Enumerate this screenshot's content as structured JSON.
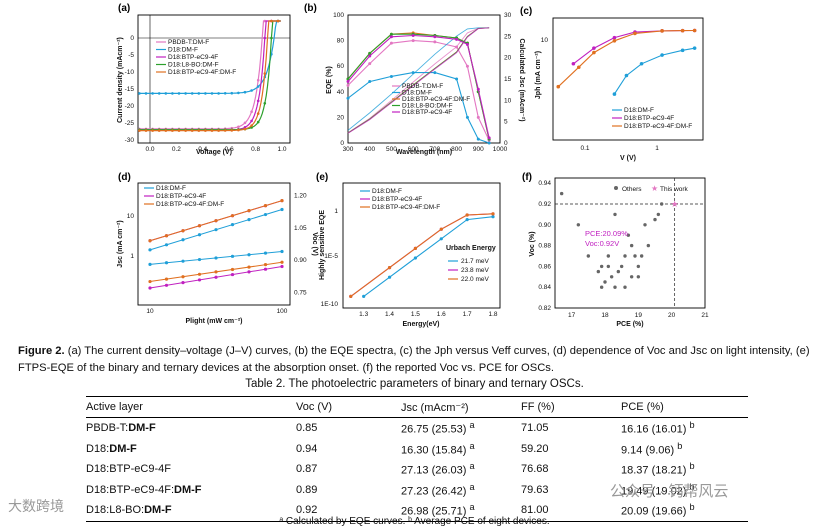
{
  "panels": {
    "a": {
      "label": "(a)",
      "ylabel": "Current density (mAcm⁻²)",
      "xlabel": "Voltage (V)",
      "xticks": [
        "0.0",
        "0.2",
        "0.4",
        "0.6",
        "0.8",
        "1.0"
      ],
      "yticks": [
        "0",
        "-5",
        "-10",
        "-15",
        "-20",
        "-25",
        "-30"
      ],
      "legend": [
        "PBDB-T:DM-F",
        "D18:DM-F",
        "D18:BTP-eC9-4F",
        "D18:L8-BO:DM-F",
        "D18:BTP-eC9-4F:DM-F"
      ],
      "colors": [
        "#e377c2",
        "#1f9fd8",
        "#c020c0",
        "#2ca02c",
        "#e07020"
      ]
    },
    "b": {
      "label": "(b)",
      "ylabel": "EQE (%)",
      "y2label": "Calculated Jsc (mAcm⁻²)",
      "xlabel": "Wavelength (nm)",
      "xticks": [
        "300",
        "400",
        "500",
        "600",
        "700",
        "800",
        "900",
        "1000"
      ],
      "yticks": [
        "0",
        "20",
        "40",
        "60",
        "80",
        "100"
      ],
      "y2ticks": [
        "0",
        "5",
        "10",
        "15",
        "20",
        "25",
        "30"
      ],
      "legend": [
        "PBDB-T:DM-F",
        "D18:DM-F",
        "D18:BTP-eC9-4F:DM-F",
        "D18:L8-BO:DM-F",
        "D18:BTP-eC9-4F"
      ]
    },
    "c": {
      "label": "(c)",
      "ylabel": "Jph (mA cm⁻²)",
      "xlabel": "V (V)",
      "xticks": [
        "0.1",
        "1"
      ],
      "yticks": [
        "10"
      ],
      "legend": [
        "D18:DM-F",
        "D18:BTP-eC9-4F",
        "D18:BTP-eC9-4F:DM-F"
      ]
    },
    "d": {
      "label": "(d)",
      "ylabel": "Jsc (mA cm⁻²)",
      "y2label": "Voc (V)",
      "xlabel": "Plight (mW cm⁻²)",
      "xticks": [
        "10",
        "100"
      ],
      "yticks": [
        "1",
        "10"
      ],
      "y2ticks": [
        "0.75",
        "0.90",
        "1.05",
        "1.20"
      ],
      "y2ticks_extra": [
        "1.20",
        "1.05",
        "0.90",
        "0.75"
      ],
      "legend": [
        "D18:DM-F",
        "D18:BTP-eC9-4F",
        "D18:BTP-eC9-4F:DM-F"
      ]
    },
    "e": {
      "label": "(e)",
      "ylabel": "Highly sensitive EQE",
      "xlabel": "Energy(eV)",
      "xticks": [
        "1.3",
        "1.4",
        "1.5",
        "1.6",
        "1.7",
        "1.8"
      ],
      "yticks": [
        "1",
        "1E-5",
        "1E-10"
      ],
      "legend": [
        "D18:DM-F",
        "D18:BTP-eC9-4F",
        "D18:BTP-eC9-4F:DM-F"
      ],
      "urbach_title": "Urbach Energy",
      "urbach": [
        "21.7 meV",
        "23.8 meV",
        "22.0 meV"
      ]
    },
    "f": {
      "label": "(f)",
      "ylabel": "Voc (%)",
      "xlabel": "PCE (%)",
      "xticks": [
        "17",
        "18",
        "19",
        "20",
        "21"
      ],
      "yticks": [
        "0.82",
        "0.84",
        "0.86",
        "0.88",
        "0.90",
        "0.92",
        "0.94"
      ],
      "legend": [
        "Others",
        "This work"
      ],
      "annotation1": "PCE:20.09%",
      "annotation2": "Voc:0.92V"
    }
  },
  "chart_data": [
    {
      "type": "line",
      "title": "(a) J–V curves",
      "xlabel": "Voltage (V)",
      "ylabel": "Current density (mAcm⁻²)",
      "xlim": [
        -0.1,
        1.0
      ],
      "ylim": [
        -30,
        5
      ],
      "series": [
        {
          "name": "PBDB-T:DM-F",
          "voc": 0.85,
          "jsc": -26.75,
          "ff": 0.7105
        },
        {
          "name": "D18:DM-F",
          "voc": 0.94,
          "jsc": -16.3,
          "ff": 0.592
        },
        {
          "name": "D18:BTP-eC9-4F",
          "voc": 0.87,
          "jsc": -27.13,
          "ff": 0.7668
        },
        {
          "name": "D18:L8-BO:DM-F",
          "voc": 0.92,
          "jsc": -26.98,
          "ff": 0.81
        },
        {
          "name": "D18:BTP-eC9-4F:DM-F",
          "voc": 0.89,
          "jsc": -27.23,
          "ff": 0.7963
        }
      ]
    },
    {
      "type": "line",
      "title": "(b) EQE spectra",
      "xlabel": "Wavelength (nm)",
      "ylabel": "EQE (%)",
      "xlim": [
        300,
        1000
      ],
      "ylim": [
        0,
        100
      ],
      "series": [
        {
          "name": "PBDB-T:DM-F",
          "x": [
            300,
            400,
            500,
            600,
            700,
            800,
            850,
            900,
            950
          ],
          "y": [
            45,
            62,
            78,
            80,
            79,
            75,
            60,
            20,
            2
          ]
        },
        {
          "name": "D18:DM-F",
          "x": [
            300,
            400,
            500,
            600,
            700,
            800,
            850,
            900,
            950
          ],
          "y": [
            35,
            48,
            52,
            55,
            55,
            50,
            20,
            3,
            0
          ]
        },
        {
          "name": "D18:BTP-eC9-4F:DM-F",
          "x": [
            300,
            400,
            500,
            600,
            700,
            800,
            850,
            900,
            950
          ],
          "y": [
            50,
            70,
            85,
            86,
            84,
            82,
            78,
            40,
            3
          ]
        },
        {
          "name": "D18:L8-BO:DM-F",
          "x": [
            300,
            400,
            500,
            600,
            700,
            800,
            850,
            900,
            950
          ],
          "y": [
            50,
            70,
            85,
            85,
            84,
            82,
            78,
            40,
            3
          ]
        },
        {
          "name": "D18:BTP-eC9-4F",
          "x": [
            300,
            400,
            500,
            600,
            700,
            800,
            850,
            900,
            950
          ],
          "y": [
            48,
            68,
            83,
            84,
            83,
            81,
            77,
            42,
            4
          ]
        }
      ]
    },
    {
      "type": "line",
      "title": "(c) Jph vs Veff",
      "xlabel": "V (V)",
      "ylabel": "Jph (mA cm⁻²)",
      "series": [
        {
          "name": "D18:DM-F",
          "x": [
            0.2,
            0.3,
            0.5,
            1,
            2,
            3
          ],
          "y": [
            4,
            7,
            10,
            13,
            15,
            16
          ]
        },
        {
          "name": "D18:BTP-eC9-4F",
          "x": [
            0.05,
            0.1,
            0.2,
            0.4,
            1,
            2,
            3
          ],
          "y": [
            10,
            16,
            22,
            26,
            27,
            27.2,
            27.3
          ]
        },
        {
          "name": "D18:BTP-eC9-4F:DM-F",
          "x": [
            0.03,
            0.06,
            0.1,
            0.2,
            0.4,
            1,
            2,
            3
          ],
          "y": [
            5,
            9,
            14,
            20,
            25,
            27,
            27.2,
            27.3
          ]
        }
      ]
    },
    {
      "type": "scatter",
      "title": "(d) Voc and Jsc vs light intensity",
      "xlabel": "Plight (mW cm⁻²)",
      "ylabel": "Jsc (mA cm⁻²)",
      "series": [
        {
          "name": "D18:DM-F Jsc",
          "x": [
            10,
            100
          ],
          "y": [
            1.6,
            16.3
          ]
        },
        {
          "name": "D18:BTP-eC9-4F Jsc",
          "x": [
            10,
            100
          ],
          "y": [
            2.7,
            27.1
          ]
        },
        {
          "name": "D18:BTP-eC9-4F:DM-F Jsc",
          "x": [
            10,
            100
          ],
          "y": [
            2.7,
            27.2
          ]
        },
        {
          "name": "D18:DM-F Voc",
          "x": [
            10,
            100
          ],
          "y": [
            0.88,
            0.94
          ]
        },
        {
          "name": "D18:BTP-eC9-4F Voc",
          "x": [
            10,
            100
          ],
          "y": [
            0.77,
            0.87
          ]
        },
        {
          "name": "D18:BTP-eC9-4F:DM-F Voc",
          "x": [
            10,
            100
          ],
          "y": [
            0.8,
            0.89
          ]
        }
      ]
    },
    {
      "type": "line",
      "title": "(e) FTPS-EQE",
      "xlabel": "Energy(eV)",
      "ylabel": "Highly sensitive EQE",
      "series": [
        {
          "name": "D18:DM-F",
          "x": [
            1.3,
            1.4,
            1.5,
            1.6,
            1.7,
            1.8
          ],
          "y": [
            1e-09,
            1e-07,
            1e-05,
            0.001,
            0.1,
            0.2
          ]
        },
        {
          "name": "D18:BTP-eC9-4F",
          "x": [
            1.25,
            1.4,
            1.5,
            1.6,
            1.7,
            1.8
          ],
          "y": [
            1e-09,
            1e-06,
            0.0001,
            0.01,
            0.3,
            0.4
          ]
        },
        {
          "name": "D18:BTP-eC9-4F:DM-F",
          "x": [
            1.25,
            1.4,
            1.5,
            1.6,
            1.7,
            1.8
          ],
          "y": [
            1e-09,
            1e-06,
            0.0001,
            0.01,
            0.3,
            0.4
          ]
        }
      ]
    },
    {
      "type": "scatter",
      "title": "(f) Voc vs PCE for OSCs",
      "xlabel": "PCE (%)",
      "ylabel": "Voc (%)",
      "xlim": [
        16.5,
        21
      ],
      "ylim": [
        0.82,
        0.94
      ],
      "series": [
        {
          "name": "Others",
          "x": [
            16.7,
            17.2,
            17.5,
            17.8,
            17.9,
            18.0,
            18.1,
            18.2,
            18.3,
            18.4,
            18.5,
            18.6,
            18.7,
            18.8,
            18.9,
            19.0,
            19.1,
            19.2,
            19.3,
            19.5,
            19.6,
            19.7,
            18.3,
            18.1,
            17.9,
            18.6,
            18.8,
            19.0
          ],
          "y": [
            0.93,
            0.9,
            0.87,
            0.855,
            0.84,
            0.845,
            0.86,
            0.85,
            0.84,
            0.855,
            0.86,
            0.87,
            0.89,
            0.88,
            0.87,
            0.86,
            0.87,
            0.9,
            0.88,
            0.905,
            0.91,
            0.92,
            0.91,
            0.87,
            0.86,
            0.84,
            0.85,
            0.85
          ]
        },
        {
          "name": "This work",
          "x": [
            20.09
          ],
          "y": [
            0.92
          ]
        }
      ]
    }
  ],
  "caption": {
    "lead": "Figure 2.",
    "text": " (a) The current density–voltage (J–V) curves, (b) the EQE spectra, (c) the Jph versus Veff curves, (d) dependence of Voc and Jsc on light intensity, (e) FTPS-EQE of the binary and ternary devices at the absorption onset. (f) the reported Voc vs. PCE for OSCs."
  },
  "table": {
    "title": "Table 2. The photoelectric parameters of binary and ternary OSCs.",
    "headers": [
      "Active layer",
      "Voc (V)",
      "Jsc (mAcm⁻²)",
      "FF (%)",
      "PCE (%)"
    ],
    "rows": [
      {
        "donor": "PBDB-T:",
        "acc": "DM-F",
        "voc": "0.85",
        "jsc": "26.75 (25.53)",
        "jsc_sup": "a",
        "ff": "71.05",
        "pce": "16.16 (16.01)",
        "pce_sup": "b"
      },
      {
        "donor": "D18:",
        "acc": "DM-F",
        "voc": "0.94",
        "jsc": "16.30 (15.84)",
        "jsc_sup": "a",
        "ff": "59.20",
        "pce": "9.14 (9.06)",
        "pce_sup": "b"
      },
      {
        "donor": "D18:BTP-eC9-4F",
        "acc": "",
        "voc": "0.87",
        "jsc": "27.13 (26.03)",
        "jsc_sup": "a",
        "ff": "76.68",
        "pce": "18.37 (18.21)",
        "pce_sup": "b"
      },
      {
        "donor": "D18:BTP-eC9-4F:",
        "acc": "DM-F",
        "voc": "0.89",
        "jsc": "27.23 (26.42)",
        "jsc_sup": "a",
        "ff": "79.63",
        "pce": "19.49 (19.02)",
        "pce_sup": "b"
      },
      {
        "donor": "D18:L8-BO:",
        "acc": "DM-F",
        "voc": "0.92",
        "jsc": "26.98 (25.71)",
        "jsc_sup": "a",
        "ff": "81.00",
        "pce": "20.09 (19.66)",
        "pce_sup": "b"
      }
    ],
    "footnote": "ᵃ Calculated by EQE curves. ᵇ Average PCE of eight devices."
  },
  "watermarks": {
    "left": "大数跨境",
    "right": "公众号 · 钙帮风云"
  }
}
